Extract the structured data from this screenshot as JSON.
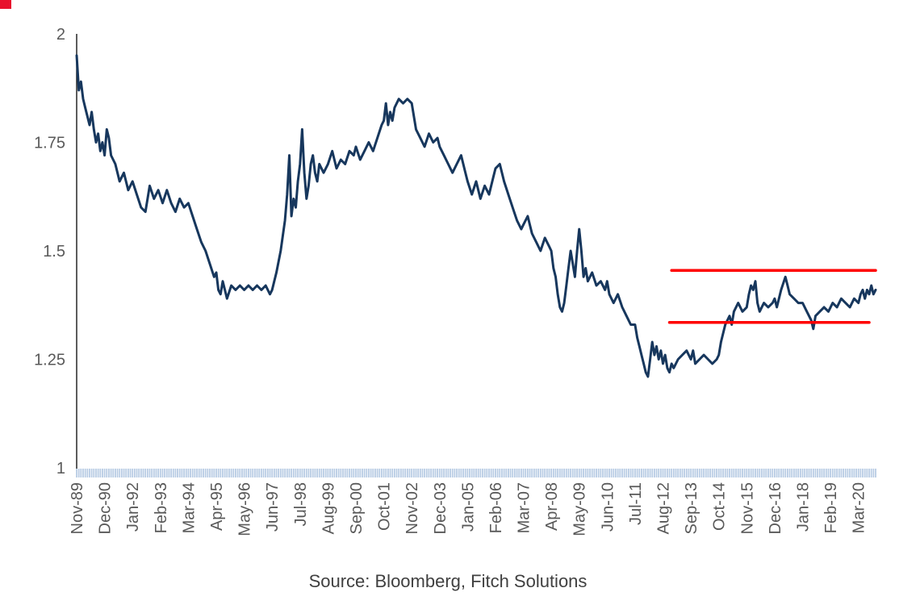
{
  "figure": {
    "source_note": "Source: Bloomberg, Fitch Solutions",
    "brand_color": "#e8112d",
    "background_color": "#ffffff",
    "axis_text_color": "#595959",
    "axis_line_color": "#262626",
    "tick_band_color": "#b8cce4"
  },
  "chart_data": {
    "type": "line",
    "title": "",
    "xlabel": "",
    "ylabel": "",
    "grid": false,
    "legend": false,
    "ylim": [
      1,
      2
    ],
    "y_ticks": [
      2,
      1.75,
      1.5,
      1.25,
      1
    ],
    "y_tick_labels": [
      "2",
      "1.75",
      "1.5",
      "1.25",
      "1"
    ],
    "x_tick_interval_months": 13,
    "x_range_months": [
      0,
      372
    ],
    "x_tick_labels": [
      "Nov-89",
      "Dec-90",
      "Jan-92",
      "Feb-93",
      "Mar-94",
      "Apr-95",
      "May-96",
      "Jun-97",
      "Jul-98",
      "Aug-99",
      "Sep-00",
      "Oct-01",
      "Nov-02",
      "Dec-03",
      "Jan-05",
      "Feb-06",
      "Mar-07",
      "Apr-08",
      "May-09",
      "Jun-10",
      "Jul-11",
      "Aug-12",
      "Sep-13",
      "Oct-14",
      "Nov-15",
      "Dec-16",
      "Jan-18",
      "Feb-19",
      "Mar-20"
    ],
    "series": [
      {
        "name": "exchange-rate",
        "color": "#17375d",
        "width": 3,
        "points": [
          [
            0,
            1.95
          ],
          [
            1,
            1.87
          ],
          [
            2,
            1.89
          ],
          [
            3,
            1.85
          ],
          [
            4,
            1.83
          ],
          [
            6,
            1.79
          ],
          [
            7,
            1.82
          ],
          [
            8,
            1.78
          ],
          [
            9,
            1.75
          ],
          [
            10,
            1.77
          ],
          [
            11,
            1.73
          ],
          [
            12,
            1.75
          ],
          [
            13,
            1.72
          ],
          [
            14,
            1.78
          ],
          [
            15,
            1.76
          ],
          [
            16,
            1.72
          ],
          [
            18,
            1.7
          ],
          [
            20,
            1.66
          ],
          [
            22,
            1.68
          ],
          [
            24,
            1.64
          ],
          [
            26,
            1.66
          ],
          [
            28,
            1.63
          ],
          [
            30,
            1.6
          ],
          [
            32,
            1.59
          ],
          [
            34,
            1.65
          ],
          [
            36,
            1.62
          ],
          [
            38,
            1.64
          ],
          [
            40,
            1.61
          ],
          [
            42,
            1.64
          ],
          [
            44,
            1.61
          ],
          [
            46,
            1.59
          ],
          [
            48,
            1.62
          ],
          [
            50,
            1.6
          ],
          [
            52,
            1.61
          ],
          [
            54,
            1.58
          ],
          [
            56,
            1.55
          ],
          [
            58,
            1.52
          ],
          [
            60,
            1.5
          ],
          [
            62,
            1.47
          ],
          [
            64,
            1.44
          ],
          [
            65,
            1.45
          ],
          [
            66,
            1.41
          ],
          [
            67,
            1.4
          ],
          [
            68,
            1.43
          ],
          [
            70,
            1.39
          ],
          [
            72,
            1.42
          ],
          [
            74,
            1.41
          ],
          [
            76,
            1.42
          ],
          [
            78,
            1.41
          ],
          [
            80,
            1.42
          ],
          [
            82,
            1.41
          ],
          [
            84,
            1.42
          ],
          [
            86,
            1.41
          ],
          [
            88,
            1.42
          ],
          [
            90,
            1.4
          ],
          [
            91,
            1.41
          ],
          [
            93,
            1.45
          ],
          [
            95,
            1.5
          ],
          [
            97,
            1.57
          ],
          [
            98,
            1.63
          ],
          [
            99,
            1.72
          ],
          [
            100,
            1.58
          ],
          [
            101,
            1.62
          ],
          [
            102,
            1.6
          ],
          [
            103,
            1.66
          ],
          [
            104,
            1.7
          ],
          [
            105,
            1.78
          ],
          [
            106,
            1.68
          ],
          [
            107,
            1.62
          ],
          [
            108,
            1.65
          ],
          [
            109,
            1.7
          ],
          [
            110,
            1.72
          ],
          [
            111,
            1.68
          ],
          [
            112,
            1.66
          ],
          [
            113,
            1.7
          ],
          [
            115,
            1.68
          ],
          [
            117,
            1.7
          ],
          [
            119,
            1.73
          ],
          [
            121,
            1.69
          ],
          [
            123,
            1.71
          ],
          [
            125,
            1.7
          ],
          [
            127,
            1.73
          ],
          [
            129,
            1.72
          ],
          [
            130,
            1.74
          ],
          [
            132,
            1.71
          ],
          [
            134,
            1.73
          ],
          [
            136,
            1.75
          ],
          [
            138,
            1.73
          ],
          [
            140,
            1.76
          ],
          [
            142,
            1.79
          ],
          [
            143,
            1.8
          ],
          [
            144,
            1.84
          ],
          [
            145,
            1.79
          ],
          [
            146,
            1.82
          ],
          [
            147,
            1.8
          ],
          [
            148,
            1.83
          ],
          [
            150,
            1.85
          ],
          [
            152,
            1.84
          ],
          [
            154,
            1.85
          ],
          [
            156,
            1.84
          ],
          [
            158,
            1.78
          ],
          [
            160,
            1.76
          ],
          [
            162,
            1.74
          ],
          [
            164,
            1.77
          ],
          [
            166,
            1.75
          ],
          [
            168,
            1.76
          ],
          [
            169,
            1.74
          ],
          [
            171,
            1.72
          ],
          [
            173,
            1.7
          ],
          [
            175,
            1.68
          ],
          [
            177,
            1.7
          ],
          [
            179,
            1.72
          ],
          [
            181,
            1.68
          ],
          [
            182,
            1.66
          ],
          [
            184,
            1.63
          ],
          [
            186,
            1.66
          ],
          [
            188,
            1.62
          ],
          [
            190,
            1.65
          ],
          [
            192,
            1.63
          ],
          [
            194,
            1.67
          ],
          [
            195,
            1.69
          ],
          [
            197,
            1.7
          ],
          [
            199,
            1.66
          ],
          [
            201,
            1.63
          ],
          [
            203,
            1.6
          ],
          [
            205,
            1.57
          ],
          [
            207,
            1.55
          ],
          [
            208,
            1.56
          ],
          [
            210,
            1.58
          ],
          [
            212,
            1.54
          ],
          [
            214,
            1.52
          ],
          [
            216,
            1.5
          ],
          [
            218,
            1.53
          ],
          [
            220,
            1.51
          ],
          [
            221,
            1.5
          ],
          [
            222,
            1.46
          ],
          [
            223,
            1.44
          ],
          [
            224,
            1.4
          ],
          [
            225,
            1.37
          ],
          [
            226,
            1.36
          ],
          [
            227,
            1.38
          ],
          [
            228,
            1.42
          ],
          [
            229,
            1.46
          ],
          [
            230,
            1.5
          ],
          [
            231,
            1.47
          ],
          [
            232,
            1.44
          ],
          [
            233,
            1.5
          ],
          [
            234,
            1.55
          ],
          [
            235,
            1.5
          ],
          [
            236,
            1.44
          ],
          [
            237,
            1.46
          ],
          [
            238,
            1.43
          ],
          [
            240,
            1.45
          ],
          [
            242,
            1.42
          ],
          [
            244,
            1.43
          ],
          [
            246,
            1.41
          ],
          [
            247,
            1.43
          ],
          [
            248,
            1.4
          ],
          [
            250,
            1.38
          ],
          [
            252,
            1.4
          ],
          [
            254,
            1.37
          ],
          [
            256,
            1.35
          ],
          [
            258,
            1.33
          ],
          [
            260,
            1.33
          ],
          [
            261,
            1.3
          ],
          [
            262,
            1.28
          ],
          [
            263,
            1.26
          ],
          [
            264,
            1.24
          ],
          [
            265,
            1.22
          ],
          [
            266,
            1.21
          ],
          [
            267,
            1.25
          ],
          [
            268,
            1.29
          ],
          [
            269,
            1.26
          ],
          [
            270,
            1.28
          ],
          [
            271,
            1.25
          ],
          [
            272,
            1.27
          ],
          [
            273,
            1.24
          ],
          [
            274,
            1.26
          ],
          [
            275,
            1.23
          ],
          [
            276,
            1.22
          ],
          [
            277,
            1.24
          ],
          [
            278,
            1.23
          ],
          [
            280,
            1.25
          ],
          [
            282,
            1.26
          ],
          [
            284,
            1.27
          ],
          [
            286,
            1.25
          ],
          [
            287,
            1.27
          ],
          [
            288,
            1.24
          ],
          [
            290,
            1.25
          ],
          [
            292,
            1.26
          ],
          [
            294,
            1.25
          ],
          [
            296,
            1.24
          ],
          [
            298,
            1.25
          ],
          [
            299,
            1.26
          ],
          [
            300,
            1.29
          ],
          [
            302,
            1.33
          ],
          [
            304,
            1.35
          ],
          [
            305,
            1.33
          ],
          [
            306,
            1.36
          ],
          [
            308,
            1.38
          ],
          [
            310,
            1.36
          ],
          [
            312,
            1.37
          ],
          [
            313,
            1.4
          ],
          [
            314,
            1.42
          ],
          [
            315,
            1.41
          ],
          [
            316,
            1.43
          ],
          [
            317,
            1.38
          ],
          [
            318,
            1.36
          ],
          [
            320,
            1.38
          ],
          [
            322,
            1.37
          ],
          [
            324,
            1.38
          ],
          [
            325,
            1.39
          ],
          [
            326,
            1.37
          ],
          [
            328,
            1.41
          ],
          [
            330,
            1.44
          ],
          [
            331,
            1.42
          ],
          [
            332,
            1.4
          ],
          [
            334,
            1.39
          ],
          [
            336,
            1.38
          ],
          [
            338,
            1.38
          ],
          [
            340,
            1.36
          ],
          [
            342,
            1.34
          ],
          [
            343,
            1.32
          ],
          [
            344,
            1.35
          ],
          [
            346,
            1.36
          ],
          [
            348,
            1.37
          ],
          [
            350,
            1.36
          ],
          [
            352,
            1.38
          ],
          [
            354,
            1.37
          ],
          [
            356,
            1.39
          ],
          [
            358,
            1.38
          ],
          [
            360,
            1.37
          ],
          [
            362,
            1.39
          ],
          [
            364,
            1.38
          ],
          [
            365,
            1.4
          ],
          [
            366,
            1.41
          ],
          [
            367,
            1.39
          ],
          [
            368,
            1.41
          ],
          [
            369,
            1.4
          ],
          [
            370,
            1.42
          ],
          [
            371,
            1.4
          ],
          [
            372,
            1.41
          ]
        ]
      }
    ],
    "annotations": [
      {
        "type": "hline",
        "name": "resistance-line",
        "value": 1.455,
        "from_month": 277,
        "to_month": 372,
        "color": "#ff0000",
        "width": 3.5
      },
      {
        "type": "hline",
        "name": "support-line",
        "value": 1.335,
        "from_month": 276,
        "to_month": 369,
        "color": "#ff0000",
        "width": 3.5
      }
    ]
  }
}
